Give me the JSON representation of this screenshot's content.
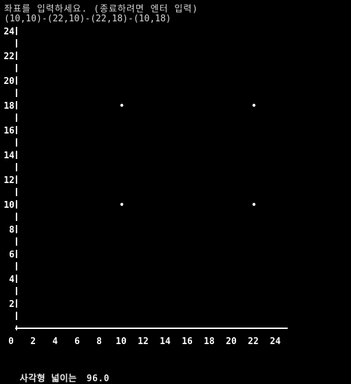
{
  "terminal": {
    "prompt": "좌표를 입력하세요. (종료하려면 엔터 입력)",
    "input": "(10,10)-(22,10)-(22,18)-(10,18)",
    "result_label": "사각형 넓이는",
    "result_value": "96.0"
  },
  "chart_data": {
    "type": "scatter",
    "x": [
      10,
      22,
      22,
      10
    ],
    "y": [
      10,
      10,
      18,
      18
    ],
    "x_ticks": [
      "0",
      "2",
      "4",
      "6",
      "8",
      "10",
      "12",
      "14",
      "16",
      "18",
      "20",
      "22",
      "24"
    ],
    "y_ticks": [
      "24",
      "22",
      "20",
      "18",
      "16",
      "14",
      "12",
      "10",
      "8",
      "6",
      "4",
      "2"
    ],
    "xlim": [
      0,
      24
    ],
    "ylim": [
      0,
      24
    ],
    "grid": false,
    "colors": {
      "axis": "#ffffff",
      "point": "#ffffff",
      "background": "#000000"
    }
  }
}
